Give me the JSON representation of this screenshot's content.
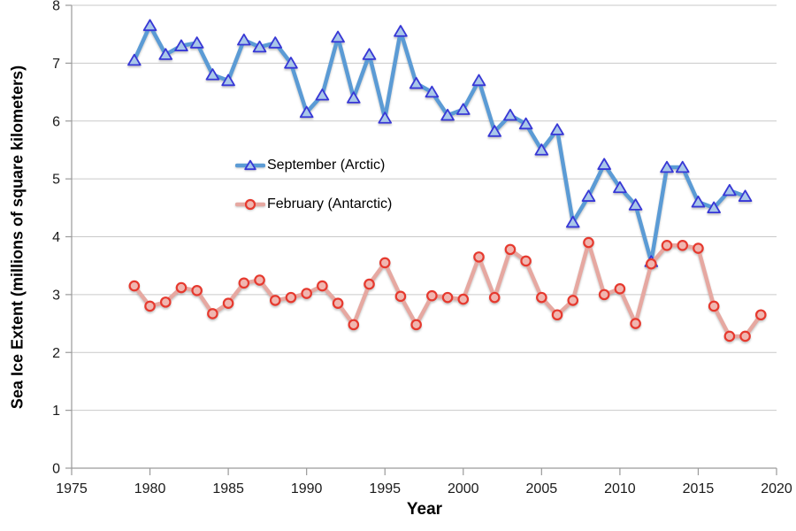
{
  "page": {
    "background": "#FFFFFF"
  },
  "chart_data": {
    "type": "line",
    "title": "",
    "xlabel": "Year",
    "ylabel": "Sea Ice Extent (millions of square kilometers)",
    "xlim": [
      1975,
      2020
    ],
    "ylim": [
      0,
      8
    ],
    "x_ticks": [
      1975,
      1980,
      1985,
      1990,
      1995,
      2000,
      2005,
      2010,
      2015,
      2020
    ],
    "y_ticks": [
      0,
      1,
      2,
      3,
      4,
      5,
      6,
      7,
      8
    ],
    "grid": "horizontal-only",
    "legend_position": "inside-left-center",
    "colors": {
      "background": "#FFFFFF",
      "gridline": "#C9C9C9",
      "axis": "#9A9A9A",
      "tick_text": "#1A1A1A"
    },
    "series": [
      {
        "name": "September (Arctic)",
        "marker": "triangle",
        "line_color": "#5B9BD5",
        "marker_fill": "#A9C7E9",
        "marker_edge": "#3737D6",
        "years": [
          1979,
          1980,
          1981,
          1982,
          1983,
          1984,
          1985,
          1986,
          1987,
          1988,
          1989,
          1990,
          1991,
          1992,
          1993,
          1994,
          1995,
          1996,
          1997,
          1998,
          1999,
          2000,
          2001,
          2002,
          2003,
          2004,
          2005,
          2006,
          2007,
          2008,
          2009,
          2010,
          2011,
          2012,
          2013,
          2014,
          2015,
          2016,
          2017,
          2018
        ],
        "values": [
          7.05,
          7.65,
          7.15,
          7.3,
          7.35,
          6.8,
          6.7,
          7.4,
          7.28,
          7.35,
          7.0,
          6.15,
          6.45,
          7.45,
          6.4,
          7.15,
          6.05,
          7.55,
          6.65,
          6.5,
          6.1,
          6.2,
          6.7,
          5.82,
          6.1,
          5.95,
          5.5,
          5.85,
          4.25,
          4.7,
          5.25,
          4.85,
          4.55,
          3.57,
          5.2,
          5.2,
          4.6,
          4.5,
          4.8,
          4.7
        ]
      },
      {
        "name": "February (Antarctic)",
        "marker": "circle",
        "line_color": "#E6A8A1",
        "marker_fill": "#F0B6B0",
        "marker_edge": "#E6392E",
        "years": [
          1979,
          1980,
          1981,
          1982,
          1983,
          1984,
          1985,
          1986,
          1987,
          1988,
          1989,
          1990,
          1991,
          1992,
          1993,
          1994,
          1995,
          1996,
          1997,
          1998,
          1999,
          2000,
          2001,
          2002,
          2003,
          2004,
          2005,
          2006,
          2007,
          2008,
          2009,
          2010,
          2011,
          2012,
          2013,
          2014,
          2015,
          2016,
          2017,
          2018,
          2019
        ],
        "values": [
          3.15,
          2.8,
          2.87,
          3.12,
          3.07,
          2.67,
          2.85,
          3.2,
          3.25,
          2.9,
          2.95,
          3.02,
          3.15,
          2.85,
          2.48,
          3.18,
          3.55,
          2.97,
          2.48,
          2.98,
          2.95,
          2.92,
          3.65,
          2.95,
          3.78,
          3.58,
          2.95,
          2.65,
          2.9,
          3.9,
          3.0,
          3.1,
          2.5,
          3.53,
          3.85,
          3.85,
          3.8,
          2.8,
          2.28,
          2.28,
          2.65
        ]
      }
    ]
  }
}
